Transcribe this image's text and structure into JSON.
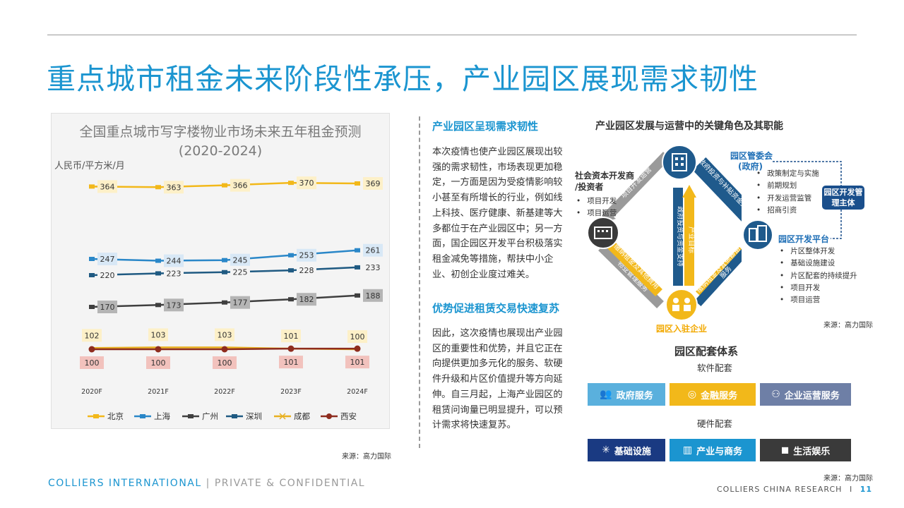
{
  "title": "重点城市租金未来阶段性承压，产业园区展现需求韧性",
  "chart_data": {
    "type": "line",
    "title": "全国重点城市写字楼物业市场未来五年租金预测",
    "subtitle": "(2020-2024)",
    "ylabel": "人民币/平方米/月",
    "categories": [
      "2020F",
      "2021F",
      "2022F",
      "2023F",
      "2024F"
    ],
    "ylim": [
      80,
      400
    ],
    "grid": false,
    "legend_position": "bottom",
    "series": [
      {
        "name": "北京",
        "color": "#f2b81a",
        "values": [
          364,
          363,
          366,
          370,
          369
        ],
        "label_fill": "#fdf0c8"
      },
      {
        "name": "上海",
        "color": "#2a87c8",
        "values": [
          247,
          244,
          245,
          253,
          261
        ],
        "label_fill": "#d8e8f6"
      },
      {
        "name": "广州",
        "color": "#3f3f3f",
        "values": [
          170,
          173,
          177,
          182,
          188
        ],
        "label_fill": "#b5b5b5"
      },
      {
        "name": "深圳",
        "color": "#1f5a82",
        "values": [
          220,
          223,
          225,
          228,
          233
        ],
        "label_fill": "#f4f4f4"
      },
      {
        "name": "成都",
        "color": "#e8b020",
        "values": [
          102,
          103,
          103,
          101,
          100
        ],
        "label_fill": "#fdf0c8"
      },
      {
        "name": "西安",
        "color": "#8e2c1e",
        "values": [
          100,
          100,
          100,
          101,
          101
        ],
        "label_fill": "#f2c2bd"
      }
    ],
    "source": "来源：高力国际"
  },
  "text": {
    "section1_heading": "产业园区呈现需求韧性",
    "section1_body": "本次疫情也使产业园区展现出较强的需求韧性，市场表现更加稳定，一方面是因为受疫情影响较小甚至有所增长的行业，例如线上科技、医疗健康、新基建等大多都位于在产业园区中；另一方面，国企园区开发平台积极落实租金减免等措施，帮扶中小企业、初创企业度过难关。",
    "section2_heading": "优势促进租赁交易快速复苏",
    "section2_body": "因此，这次疫情也展现出产业园区的重要性和优势，并且它正在向提供更加多元化的服务、软硬件升级和片区价值提升等方向延伸。自三月起，上海产业园区的租赁问询量已明显提升，可以预计需求将快速复苏。"
  },
  "diagram": {
    "title": "产业园区发展与运营中的关键角色及其职能",
    "gov": {
      "name": "园区管委会",
      "sub": "(政府)",
      "items": [
        "政策制定与实施",
        "前期规划",
        "开发运营监管",
        "招商引资"
      ]
    },
    "social": {
      "name": "社会资本开发商",
      "sub": "/投资者",
      "items": [
        "项目开发",
        "项目运营"
      ]
    },
    "platform": {
      "name": "园区开发平台",
      "items": [
        "片区整体开发",
        "基础设施建设",
        "片区配套的持续提升",
        "项目开发",
        "项目运营"
      ]
    },
    "tenant": "园区入驻企业",
    "mgmt_box": [
      "园区开发管",
      "理主体"
    ],
    "arrow_labels": {
      "a1": "项目开发运营",
      "a2": "政府投资与补贴资金支持",
      "a3": "产业目标",
      "a4": "政府投资与资金支持",
      "a5": "物业管理服务",
      "a6": "缴纳租金及其他费用",
      "a7": "缴纳租金及其他费用",
      "a8": "服务"
    },
    "source": "来源：高力国际",
    "colors": {
      "gold": "#f2b81a",
      "navy": "#1f5a8c",
      "grey": "#9a9a9a",
      "dark": "#3a3a3a"
    }
  },
  "support": {
    "title": "园区配套体系",
    "software_label": "软件配套",
    "hardware_label": "硬件配套",
    "software": [
      {
        "label": "政府服务",
        "icon": "people-icon",
        "color": "#5ab0dd"
      },
      {
        "label": "金融服务",
        "icon": "coins-icon",
        "color": "#f2b81a"
      },
      {
        "label": "企业运营服务",
        "icon": "team-icon",
        "color": "#6e7fa6"
      }
    ],
    "hardware": [
      {
        "label": "基础设施",
        "icon": "network-icon",
        "color": "#1a3a82"
      },
      {
        "label": "产业与商务",
        "icon": "building-icon",
        "color": "#1b95d0"
      },
      {
        "label": "生活娱乐",
        "icon": "bag-icon",
        "color": "#3a3a3a"
      }
    ],
    "source": "来源：高力国际"
  },
  "footer": {
    "brand": "COLLIERS INTERNATIONAL",
    "separator": " | ",
    "confidential": "PRIVATE & CONFIDENTIAL",
    "right": "COLLIERS CHINA RESEARCH",
    "right_sep": "I",
    "page": "11"
  }
}
